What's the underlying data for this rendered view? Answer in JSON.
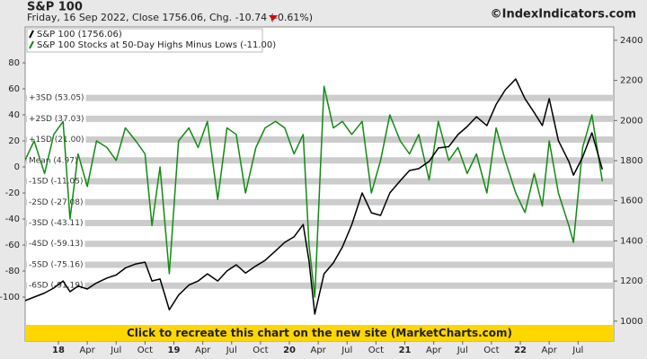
{
  "chart_data": {
    "type": "line",
    "title": "S&P 100",
    "subtitle": "Friday, 16 Sep 2022, Close 1756.06, Chg. -10.74 (-0.61%)",
    "credit": "©IndexIndicators.com",
    "banner": "Click to recreate this chart on the new site (MarketCharts.com)",
    "x": [
      2017.71,
      2017.79,
      2017.88,
      2017.96,
      2018.04,
      2018.1,
      2018.17,
      2018.25,
      2018.33,
      2018.42,
      2018.5,
      2018.58,
      2018.67,
      2018.75,
      2018.81,
      2018.88,
      2018.96,
      2019.04,
      2019.13,
      2019.21,
      2019.29,
      2019.38,
      2019.46,
      2019.54,
      2019.62,
      2019.71,
      2019.79,
      2019.88,
      2019.96,
      2020.04,
      2020.12,
      2020.17,
      2020.22,
      2020.3,
      2020.38,
      2020.46,
      2020.54,
      2020.63,
      2020.71,
      2020.79,
      2020.87,
      2020.96,
      2021.04,
      2021.12,
      2021.21,
      2021.29,
      2021.38,
      2021.46,
      2021.54,
      2021.62,
      2021.71,
      2021.79,
      2021.87,
      2021.96,
      2022.04,
      2022.12,
      2022.19,
      2022.25,
      2022.33,
      2022.42,
      2022.46,
      2022.54,
      2022.62,
      2022.71
    ],
    "series": [
      {
        "name": "S&P 100 (1756.06)",
        "color": "#000000",
        "axis": "y2",
        "values": [
          1102,
          1120,
          1140,
          1165,
          1200,
          1147,
          1175,
          1160,
          1190,
          1215,
          1230,
          1265,
          1285,
          1294,
          1200,
          1210,
          1057,
          1130,
          1180,
          1200,
          1236,
          1200,
          1250,
          1281,
          1240,
          1275,
          1303,
          1350,
          1393,
          1420,
          1482,
          1300,
          1035,
          1236,
          1290,
          1370,
          1480,
          1639,
          1540,
          1527,
          1639,
          1700,
          1751,
          1760,
          1796,
          1863,
          1870,
          1930,
          1970,
          2019,
          1975,
          2080,
          2153,
          2207,
          2109,
          2040,
          1975,
          2109,
          1900,
          1796,
          1728,
          1818,
          1939,
          1756.06
        ]
      },
      {
        "name": "S&P 100 Stocks at 50-Day Highs Minus Lows (-11.00)",
        "color": "#138a13",
        "values": [
          5,
          20,
          -5,
          25,
          35,
          -40,
          10,
          -15,
          20,
          15,
          5,
          30,
          20,
          10,
          -45,
          0,
          -82,
          20,
          30,
          15,
          35,
          -25,
          30,
          25,
          -20,
          15,
          30,
          35,
          30,
          10,
          25,
          -60,
          -100,
          62,
          30,
          35,
          25,
          35,
          -20,
          5,
          40,
          20,
          10,
          25,
          -10,
          35,
          5,
          15,
          -5,
          10,
          -20,
          30,
          5,
          -20,
          -35,
          -5,
          -30,
          20,
          -20,
          -45,
          -58,
          15,
          40,
          -11
        ]
      }
    ],
    "bands": [
      {
        "value": 53.05,
        "label": "+3SD (53.05)"
      },
      {
        "value": 37.03,
        "label": "+2SD (37.03)"
      },
      {
        "value": 21.0,
        "label": "+1SD (21.00)"
      },
      {
        "value": 4.97,
        "label": "Mean (4.97)"
      },
      {
        "value": -11.05,
        "label": "-1SD (-11.05)"
      },
      {
        "value": -27.08,
        "label": "-2SD (-27.08)"
      },
      {
        "value": -43.11,
        "label": "-3SD (-43.11)"
      },
      {
        "value": -59.13,
        "label": "-4SD (-59.13)"
      },
      {
        "value": -75.16,
        "label": "-5SD (-75.16)"
      },
      {
        "value": -91.19,
        "label": "-6SD (-91.19)"
      }
    ],
    "xlim": [
      2017.712,
      2022.809
    ],
    "xticks": [
      {
        "value": 2018,
        "label": "18"
      },
      {
        "value": 2018.25,
        "label": "Apr"
      },
      {
        "value": 2018.5,
        "label": "Jul"
      },
      {
        "value": 2018.75,
        "label": "Oct"
      },
      {
        "value": 2019,
        "label": "19"
      },
      {
        "value": 2019.25,
        "label": "Apr"
      },
      {
        "value": 2019.5,
        "label": "Jul"
      },
      {
        "value": 2019.75,
        "label": "Oct"
      },
      {
        "value": 2020,
        "label": "20"
      },
      {
        "value": 2020.25,
        "label": "Apr"
      },
      {
        "value": 2020.5,
        "label": "Jul"
      },
      {
        "value": 2020.75,
        "label": "Oct"
      },
      {
        "value": 2021,
        "label": "21"
      },
      {
        "value": 2021.25,
        "label": "Apr"
      },
      {
        "value": 2021.5,
        "label": "Jul"
      },
      {
        "value": 2021.75,
        "label": "Oct"
      },
      {
        "value": 2022,
        "label": "22"
      },
      {
        "value": 2022.25,
        "label": "Apr"
      },
      {
        "value": 2022.5,
        "label": "Jul"
      }
    ],
    "ylim": [
      -133.8,
      107.6
    ],
    "yticks": [
      80,
      60,
      40,
      20,
      0,
      -20,
      -40,
      -60,
      -80,
      -100
    ],
    "y2lim": [
      900.7,
      2466.7
    ],
    "y2ticks": [
      1000,
      1200,
      1400,
      1600,
      1800,
      2000,
      2200,
      2400
    ],
    "band_color": "#cccccc",
    "banner_color": "#ffd700"
  }
}
